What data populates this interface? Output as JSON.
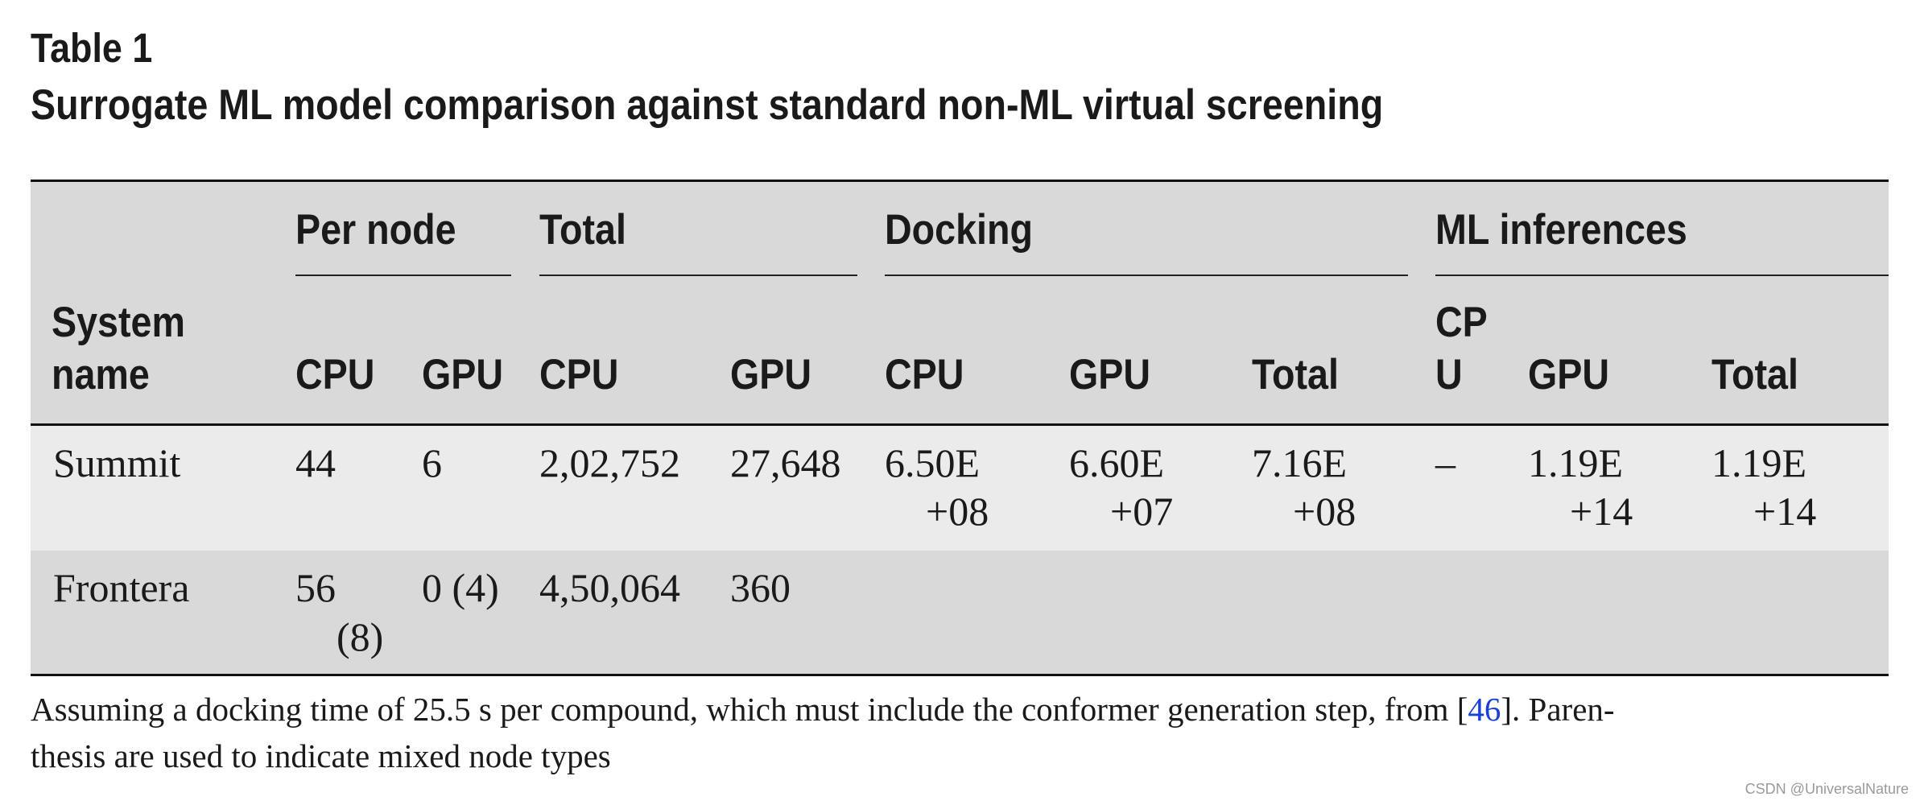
{
  "table": {
    "label": "Table 1",
    "title": "Surrogate ML model comparison against standard non-ML virtual screening",
    "group_headers": [
      "Per node",
      "Total",
      "Docking",
      "ML inferences"
    ],
    "system_header": [
      "System",
      "name"
    ],
    "column_headers": [
      "CPU",
      "GPU",
      "CPU",
      "GPU",
      "CPU",
      "GPU",
      "Total",
      "CP",
      "U",
      "GPU",
      "Total"
    ],
    "rows": [
      {
        "system": "Summit",
        "per_node_cpu": "44",
        "per_node_gpu": "6",
        "total_cpu": "2,02,752",
        "total_gpu": "27,648",
        "docking_cpu": [
          "6.50E",
          "+08"
        ],
        "docking_gpu": [
          "6.60E",
          "+07"
        ],
        "docking_total": [
          "7.16E",
          "+08"
        ],
        "ml_cpu": "–",
        "ml_gpu": [
          "1.19E",
          "+14"
        ],
        "ml_total": [
          "1.19E",
          "+14"
        ]
      },
      {
        "system": "Frontera",
        "per_node_cpu": [
          "56",
          "(8)"
        ],
        "per_node_gpu": "0 (4)",
        "total_cpu": "4,50,064",
        "total_gpu": "360"
      }
    ],
    "footnote": {
      "text_before": "Assuming a docking time of 25.5 s per compound, which must include the conformer generation step, from [",
      "citation": "46",
      "text_after": "]. Paren-",
      "line2": "thesis are used to indicate mixed node types"
    }
  },
  "watermark": "CSDN @UniversalNature"
}
